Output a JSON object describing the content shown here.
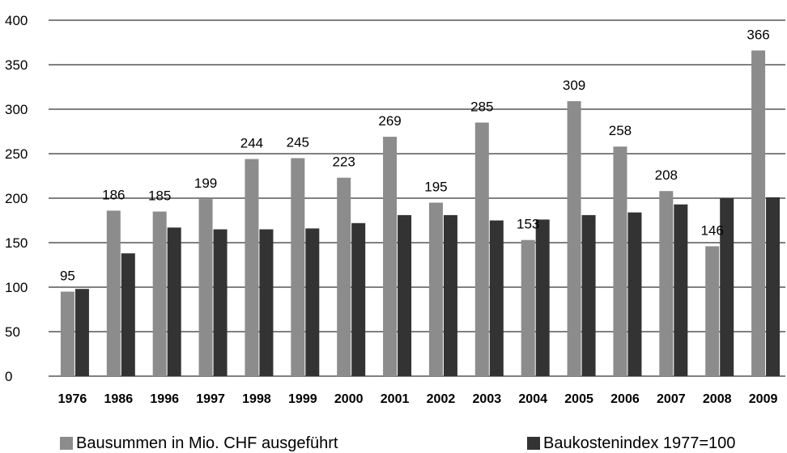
{
  "chart_data": {
    "type": "bar",
    "categories": [
      "1976",
      "1986",
      "1996",
      "1997",
      "1998",
      "1999",
      "2000",
      "2001",
      "2002",
      "2003",
      "2004",
      "2005",
      "2006",
      "2007",
      "2008",
      "2009"
    ],
    "series": [
      {
        "name": "Bausummen in Mio. CHF ausgeführt",
        "color": "#8c8c8c",
        "values": [
          95,
          186,
          185,
          199,
          244,
          245,
          223,
          269,
          195,
          285,
          153,
          309,
          258,
          208,
          146,
          366
        ],
        "data_labels": [
          "95",
          "186",
          "185",
          "199",
          "244",
          "245",
          "223",
          "269",
          "195",
          "285",
          "153",
          "309",
          "258",
          "208",
          "146",
          "366"
        ]
      },
      {
        "name": "Baukostenindex 1977=100",
        "color": "#333333",
        "values": [
          98,
          138,
          167,
          165,
          165,
          166,
          172,
          181,
          181,
          175,
          176,
          181,
          184,
          193,
          200,
          201
        ]
      }
    ],
    "ylim": [
      0,
      400
    ],
    "yticks": [
      "0",
      "50",
      "100",
      "150",
      "200",
      "250",
      "300",
      "350",
      "400"
    ],
    "grid": true,
    "legend_position": "bottom"
  }
}
